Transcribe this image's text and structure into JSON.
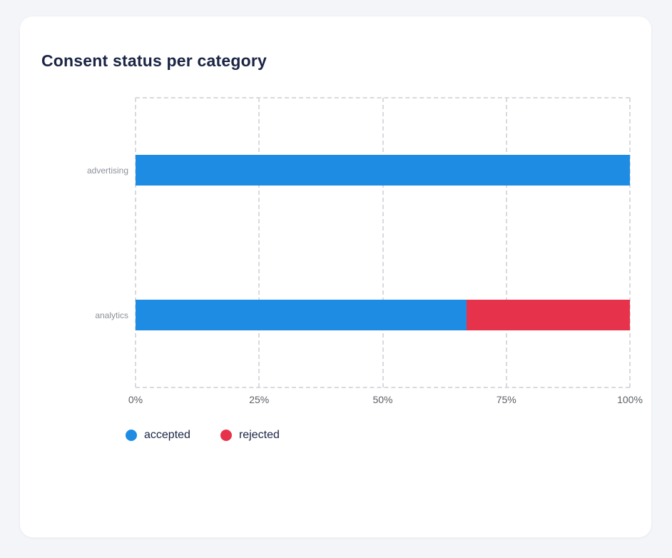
{
  "card": {
    "title": "Consent status per category"
  },
  "colors": {
    "page_bg": "#f4f5f8",
    "card_bg": "#ffffff",
    "title_text": "#1b2444",
    "grid": "#d8dade",
    "axis_tick_text": "#5d6066",
    "category_label_text": "#8c9199",
    "accepted": "#1e8ce3",
    "rejected": "#e6334b"
  },
  "chart_data": {
    "type": "bar",
    "orientation": "horizontal",
    "stacked": true,
    "title": "Consent status per category",
    "categories": [
      "advertising",
      "analytics"
    ],
    "series": [
      {
        "name": "accepted",
        "color": "#1e8ce3",
        "values": [
          100,
          67
        ]
      },
      {
        "name": "rejected",
        "color": "#e6334b",
        "values": [
          0,
          33
        ]
      }
    ],
    "x_ticks": [
      "0%",
      "25%",
      "50%",
      "75%",
      "100%"
    ],
    "xlim": [
      0,
      100
    ],
    "xlabel": "",
    "ylabel": "",
    "grid": "dashed-vertical",
    "legend_position": "bottom-left"
  }
}
